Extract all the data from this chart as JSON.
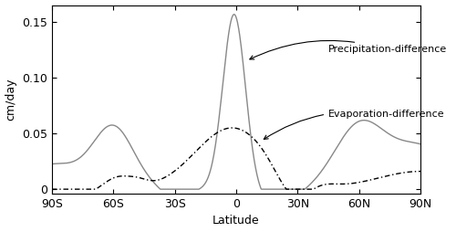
{
  "title": "",
  "xlabel": "Latitude",
  "ylabel": "cm/day",
  "xlim": [
    -90,
    90
  ],
  "ylim": [
    -0.004,
    0.165
  ],
  "xticks": [
    -90,
    -60,
    -30,
    0,
    30,
    60,
    90
  ],
  "xtick_labels": [
    "90S",
    "60S",
    "30S",
    "0",
    "30N",
    "60N",
    "90N"
  ],
  "yticks": [
    0.0,
    0.05,
    0.1,
    0.15
  ],
  "ytick_labels": [
    "0",
    "0.05",
    "0.10",
    "0.15"
  ],
  "precip_color": "#888888",
  "evap_color": "#000000",
  "precip_label": "Precipitation-difference",
  "evap_label": "Evaporation-difference",
  "fontsize": 9
}
